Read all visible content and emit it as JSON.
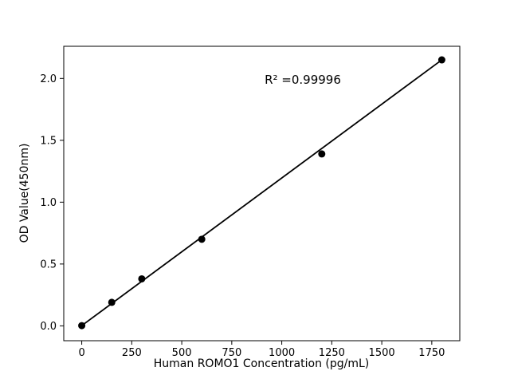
{
  "figure": {
    "background": "#ffffff",
    "plot_background": "#ffffff"
  },
  "chart_data": {
    "type": "scatter",
    "title": "",
    "xlabel": "Human ROMO1 Concentration (pg/mL)",
    "ylabel": "OD Value(450nm)",
    "annotation": "R² =0.99996",
    "x": [
      0,
      150,
      300,
      600,
      1200,
      1800
    ],
    "y": [
      0.002,
      0.19,
      0.38,
      0.7,
      1.39,
      2.15
    ],
    "fit_line": {
      "x": [
        0,
        1800
      ],
      "y": [
        0.002,
        2.15
      ]
    },
    "xticks": [
      {
        "value": 0,
        "label": "0"
      },
      {
        "value": 250,
        "label": "250"
      },
      {
        "value": 500,
        "label": "500"
      },
      {
        "value": 750,
        "label": "750"
      },
      {
        "value": 1000,
        "label": "1000"
      },
      {
        "value": 1250,
        "label": "1250"
      },
      {
        "value": 1500,
        "label": "1500"
      },
      {
        "value": 1750,
        "label": "1750"
      }
    ],
    "yticks": [
      {
        "value": 0.0,
        "label": "0.0"
      },
      {
        "value": 0.5,
        "label": "0.5"
      },
      {
        "value": 1.0,
        "label": "1.0"
      },
      {
        "value": 1.5,
        "label": "1.5"
      },
      {
        "value": 2.0,
        "label": "2.0"
      }
    ],
    "xlim": [
      -90,
      1890
    ],
    "ylim": [
      -0.12,
      2.26
    ],
    "grid": false,
    "legend": null,
    "marker_color": "#000000",
    "line_color": "#000000",
    "axis_color": "#000000"
  }
}
